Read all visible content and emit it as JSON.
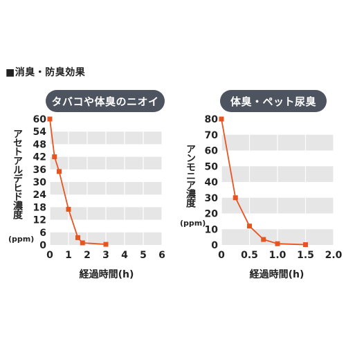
{
  "section_heading": "■消臭・防臭効果",
  "colors": {
    "pill_bg": "#4d5460",
    "band": "#e6e6e6",
    "grid": "#ffffff",
    "series": "#e8541f"
  },
  "chart_data": [
    {
      "type": "line",
      "title": "タバコや体臭のニオイ",
      "ylabel": "アセトアルデヒド濃度",
      "yunit": "(ppm)",
      "xlabel": "経過時間(h)",
      "xlim": [
        0,
        6
      ],
      "ylim": [
        0,
        60
      ],
      "xticks": [
        0,
        1,
        2,
        3,
        4,
        5,
        6
      ],
      "yticks": [
        0,
        6,
        12,
        18,
        24,
        30,
        36,
        42,
        48,
        54,
        60
      ],
      "grid": true,
      "series": [
        {
          "x": [
            0,
            0.25,
            0.5,
            1,
            1.5,
            1.75,
            3
          ],
          "y": [
            60,
            42,
            35,
            17,
            3.5,
            1,
            0.3
          ]
        }
      ]
    },
    {
      "type": "line",
      "title": "体臭・ペット尿臭",
      "ylabel": "アンモニア濃度",
      "yunit": "(ppm)",
      "xlabel": "経過時間(h)",
      "xlim": [
        0,
        2
      ],
      "ylim": [
        0,
        80
      ],
      "xticks": [
        0,
        0.5,
        1.0,
        1.5,
        2.0
      ],
      "xtick_labels": [
        "0",
        "0.5",
        "1.0",
        "1.5",
        "2.0"
      ],
      "yticks": [
        0,
        10,
        20,
        30,
        40,
        50,
        60,
        70,
        80
      ],
      "grid": true,
      "series": [
        {
          "x": [
            0,
            0.25,
            0.5,
            0.75,
            1.0,
            1.5
          ],
          "y": [
            80,
            30,
            12,
            3.5,
            0.8,
            0.2
          ]
        }
      ]
    }
  ]
}
